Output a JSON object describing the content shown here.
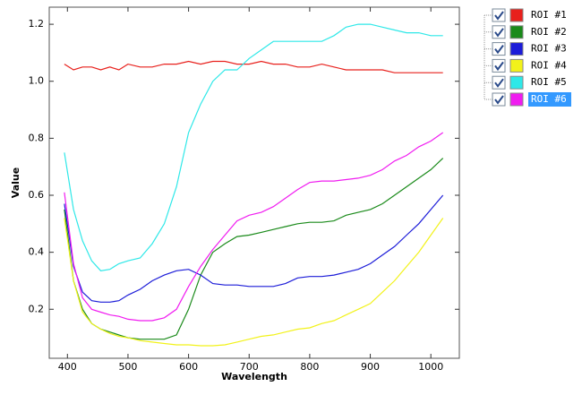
{
  "chart_data": {
    "type": "line",
    "x_label": "Wavelength",
    "y_label": "Value",
    "x": [
      395,
      410,
      425,
      440,
      455,
      470,
      485,
      500,
      520,
      540,
      560,
      580,
      600,
      620,
      640,
      660,
      680,
      700,
      720,
      740,
      760,
      780,
      800,
      820,
      840,
      860,
      880,
      900,
      920,
      940,
      960,
      980,
      1000,
      1020
    ],
    "series": [
      {
        "name": "ROI #1",
        "color": "#e8201c",
        "values": [
          1.06,
          1.04,
          1.05,
          1.05,
          1.04,
          1.05,
          1.04,
          1.06,
          1.05,
          1.05,
          1.06,
          1.06,
          1.07,
          1.06,
          1.07,
          1.07,
          1.06,
          1.06,
          1.07,
          1.06,
          1.06,
          1.05,
          1.05,
          1.06,
          1.05,
          1.04,
          1.04,
          1.04,
          1.04,
          1.03,
          1.03,
          1.03,
          1.03,
          1.03
        ]
      },
      {
        "name": "ROI #2",
        "color": "#1a8a1a",
        "values": [
          0.55,
          0.3,
          0.2,
          0.15,
          0.13,
          0.12,
          0.11,
          0.1,
          0.095,
          0.095,
          0.095,
          0.11,
          0.2,
          0.32,
          0.4,
          0.43,
          0.455,
          0.46,
          0.47,
          0.48,
          0.49,
          0.5,
          0.505,
          0.505,
          0.51,
          0.53,
          0.54,
          0.55,
          0.57,
          0.6,
          0.63,
          0.66,
          0.69,
          0.73
        ]
      },
      {
        "name": "ROI #3",
        "color": "#1c1cd8",
        "values": [
          0.57,
          0.35,
          0.26,
          0.23,
          0.225,
          0.225,
          0.23,
          0.25,
          0.27,
          0.3,
          0.32,
          0.335,
          0.34,
          0.32,
          0.29,
          0.285,
          0.285,
          0.28,
          0.28,
          0.28,
          0.29,
          0.31,
          0.315,
          0.315,
          0.32,
          0.33,
          0.34,
          0.36,
          0.39,
          0.42,
          0.46,
          0.5,
          0.55,
          0.6
        ]
      },
      {
        "name": "ROI #4",
        "color": "#f2f21a",
        "values": [
          0.52,
          0.3,
          0.19,
          0.15,
          0.13,
          0.115,
          0.105,
          0.1,
          0.09,
          0.085,
          0.08,
          0.075,
          0.075,
          0.072,
          0.072,
          0.075,
          0.085,
          0.095,
          0.105,
          0.11,
          0.12,
          0.13,
          0.135,
          0.15,
          0.16,
          0.18,
          0.2,
          0.22,
          0.26,
          0.3,
          0.35,
          0.4,
          0.46,
          0.52
        ]
      },
      {
        "name": "ROI #5",
        "color": "#2ee8e8",
        "values": [
          0.75,
          0.55,
          0.44,
          0.37,
          0.335,
          0.34,
          0.36,
          0.37,
          0.38,
          0.43,
          0.5,
          0.63,
          0.82,
          0.92,
          1.0,
          1.04,
          1.04,
          1.08,
          1.11,
          1.14,
          1.14,
          1.14,
          1.14,
          1.14,
          1.16,
          1.19,
          1.2,
          1.2,
          1.19,
          1.18,
          1.17,
          1.17,
          1.16,
          1.16
        ]
      },
      {
        "name": "ROI #6",
        "color": "#f01cf0",
        "values": [
          0.61,
          0.36,
          0.24,
          0.2,
          0.19,
          0.18,
          0.175,
          0.165,
          0.16,
          0.16,
          0.17,
          0.2,
          0.28,
          0.35,
          0.41,
          0.46,
          0.51,
          0.53,
          0.54,
          0.56,
          0.59,
          0.62,
          0.645,
          0.65,
          0.65,
          0.655,
          0.66,
          0.67,
          0.69,
          0.72,
          0.74,
          0.77,
          0.79,
          0.82
        ]
      }
    ],
    "xlim": [
      370,
      1047
    ],
    "ylim": [
      0.028,
      1.26
    ],
    "xticks": [
      400,
      500,
      600,
      700,
      800,
      900,
      1000
    ],
    "yticks": [
      0.2,
      0.4,
      0.6,
      0.8,
      {
        "value": 1,
        "label": "1.0"
      },
      1.2
    ],
    "grid": false
  }
}
